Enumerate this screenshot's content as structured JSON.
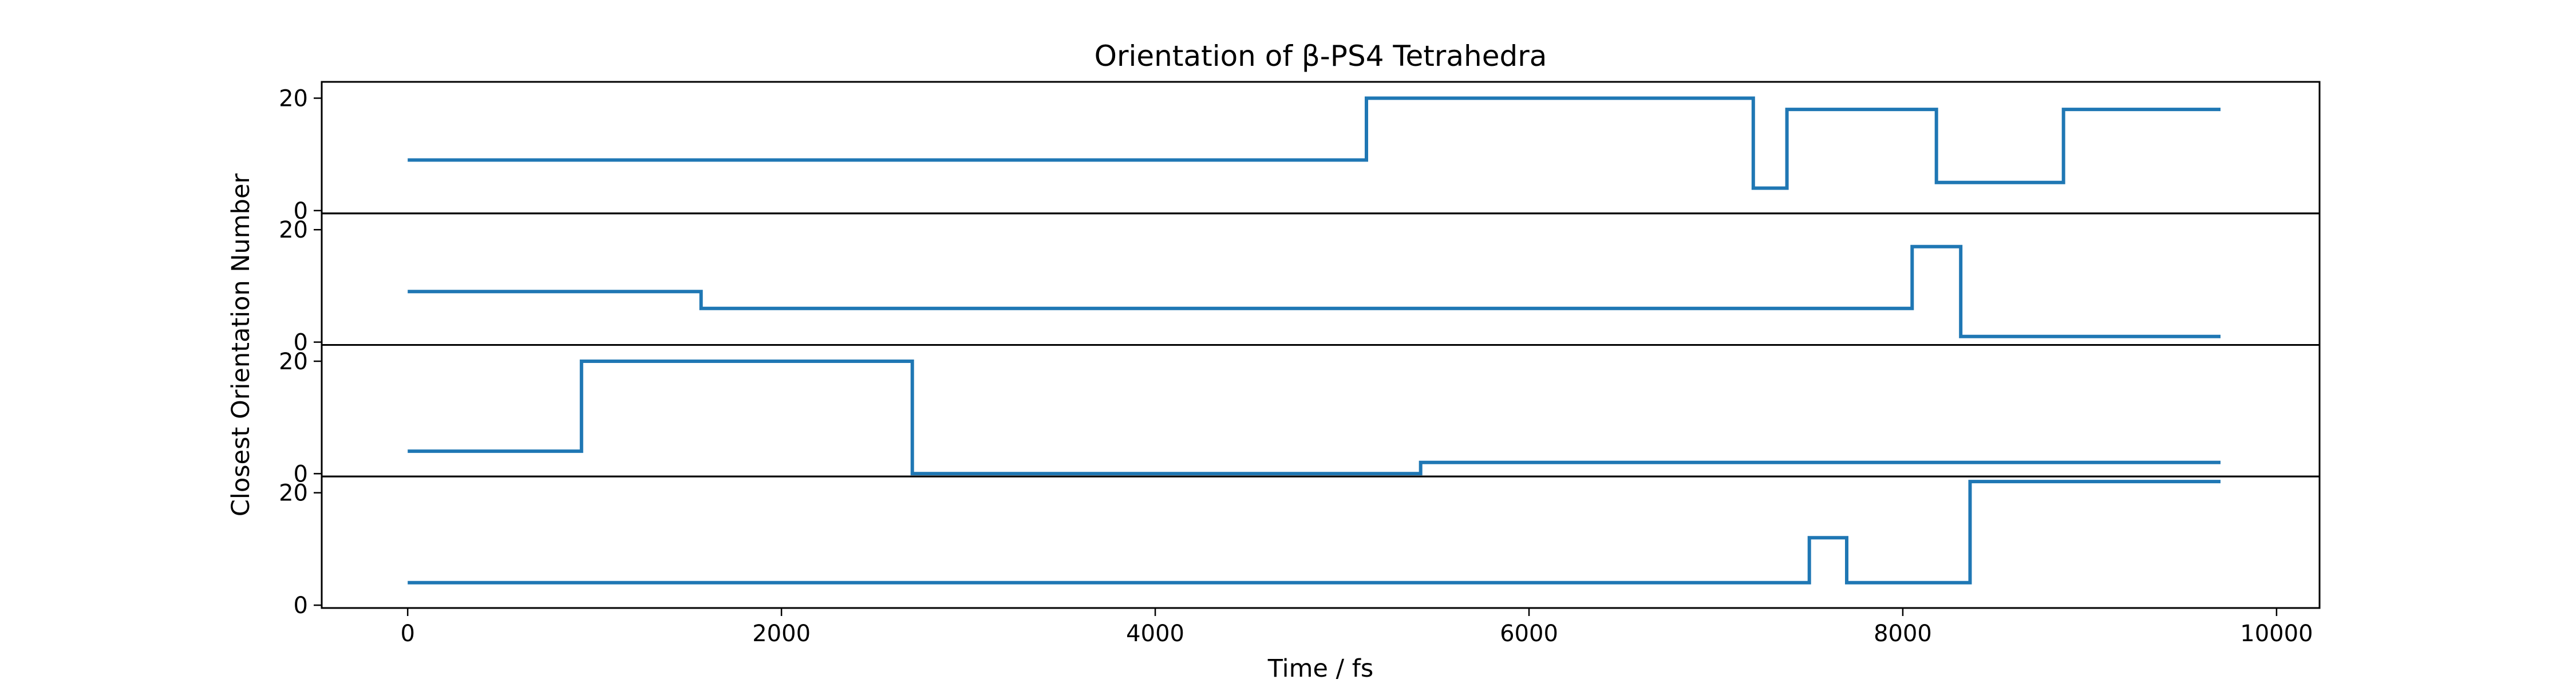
{
  "chart_data": {
    "type": "line",
    "step": "post",
    "title": "Orientation of β-PS4 Tetrahedra",
    "xlabel": "Time / fs",
    "ylabel": "Closest Orientation Number",
    "xlim": [
      -460,
      10230
    ],
    "xticks": [
      0,
      2000,
      4000,
      6000,
      8000,
      10000
    ],
    "xtick_labels": [
      "0",
      "2000",
      "4000",
      "6000",
      "8000",
      "10000"
    ],
    "grid": false,
    "legend": "none",
    "color": "#1f77b4",
    "panels": [
      {
        "ylim": [
          -0.5,
          22.9
        ],
        "yticks": [
          0,
          20
        ],
        "ytick_labels": [
          "0",
          "20"
        ],
        "x": [
          0,
          5130,
          7200,
          7380,
          8180,
          8860,
          9700
        ],
        "y": [
          9,
          20,
          4,
          18,
          5,
          18,
          18
        ]
      },
      {
        "ylim": [
          -0.5,
          22.9
        ],
        "yticks": [
          0,
          20
        ],
        "ytick_labels": [
          "0",
          "20"
        ],
        "x": [
          0,
          1570,
          8050,
          8310,
          9700
        ],
        "y": [
          9,
          6,
          17,
          1,
          1
        ]
      },
      {
        "ylim": [
          -0.5,
          22.9
        ],
        "yticks": [
          0,
          20
        ],
        "ytick_labels": [
          "0",
          "20"
        ],
        "x": [
          0,
          930,
          2700,
          5420,
          9700
        ],
        "y": [
          4,
          20,
          0,
          2,
          2
        ]
      },
      {
        "ylim": [
          -0.5,
          22.9
        ],
        "yticks": [
          0,
          20
        ],
        "ytick_labels": [
          "0",
          "20"
        ],
        "x": [
          0,
          7500,
          7700,
          8360,
          9700
        ],
        "y": [
          4,
          12,
          4,
          22,
          22
        ]
      }
    ]
  }
}
